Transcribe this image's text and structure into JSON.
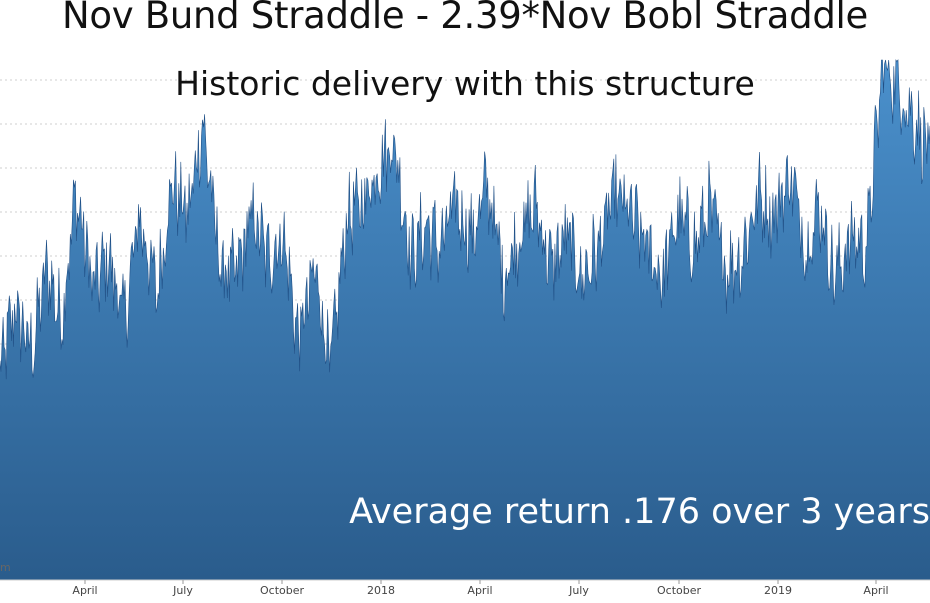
{
  "chart_data": {
    "type": "area",
    "title": "Nov Bund Straddle - 2.39*Nov Bobl Straddle",
    "subtitle": "Historic delivery with this structure",
    "annotation": "Average return .176 over 3 years",
    "stray_label": "m",
    "x_tick_labels": [
      "April",
      "July",
      "October",
      "2018",
      "April",
      "July",
      "October",
      "2019",
      "April"
    ],
    "x_range": [
      "2017-01-01",
      "2019-06-15"
    ],
    "y_range": [
      0,
      1
    ],
    "grid": "horizontal dashed",
    "legend": "none",
    "series": [
      {
        "x": [
          "2017-01-01",
          "2017-01-15",
          "2017-02-01",
          "2017-02-15",
          "2017-03-01",
          "2017-03-15",
          "2017-04-01",
          "2017-04-15",
          "2017-05-01",
          "2017-05-15",
          "2017-06-01",
          "2017-06-15",
          "2017-07-01",
          "2017-07-15",
          "2017-08-01",
          "2017-08-15",
          "2017-09-01",
          "2017-09-15",
          "2017-10-01",
          "2017-10-15",
          "2017-11-01",
          "2017-11-15",
          "2017-12-01",
          "2017-12-15",
          "2018-01-01",
          "2018-01-15",
          "2018-02-01",
          "2018-02-15",
          "2018-03-01",
          "2018-03-15",
          "2018-04-01",
          "2018-04-15",
          "2018-05-01",
          "2018-05-15",
          "2018-06-01",
          "2018-06-15",
          "2018-07-01",
          "2018-07-15",
          "2018-08-01",
          "2018-08-15",
          "2018-09-01",
          "2018-09-15",
          "2018-10-01",
          "2018-10-15",
          "2018-11-01",
          "2018-11-15",
          "2018-12-01",
          "2018-12-15",
          "2019-01-01",
          "2019-01-15",
          "2019-02-01",
          "2019-02-15",
          "2019-03-01",
          "2019-03-15",
          "2019-04-01",
          "2019-04-15",
          "2019-05-01",
          "2019-05-15",
          "2019-06-01",
          "2019-06-15"
        ],
        "y": [
          0.4,
          0.52,
          0.44,
          0.6,
          0.5,
          0.74,
          0.56,
          0.62,
          0.5,
          0.7,
          0.55,
          0.76,
          0.7,
          0.88,
          0.6,
          0.58,
          0.7,
          0.62,
          0.66,
          0.46,
          0.6,
          0.4,
          0.7,
          0.72,
          0.8,
          0.84,
          0.62,
          0.68,
          0.64,
          0.72,
          0.66,
          0.76,
          0.58,
          0.66,
          0.72,
          0.6,
          0.66,
          0.58,
          0.64,
          0.74,
          0.7,
          0.64,
          0.58,
          0.7,
          0.64,
          0.72,
          0.6,
          0.62,
          0.74,
          0.7,
          0.78,
          0.64,
          0.72,
          0.58,
          0.66,
          0.64,
          1.0,
          0.95,
          0.88,
          0.82
        ]
      }
    ],
    "colors": {
      "area_top": "#4a90cc",
      "area_bottom": "#2a5c8c",
      "line": "#1f4f86"
    }
  }
}
